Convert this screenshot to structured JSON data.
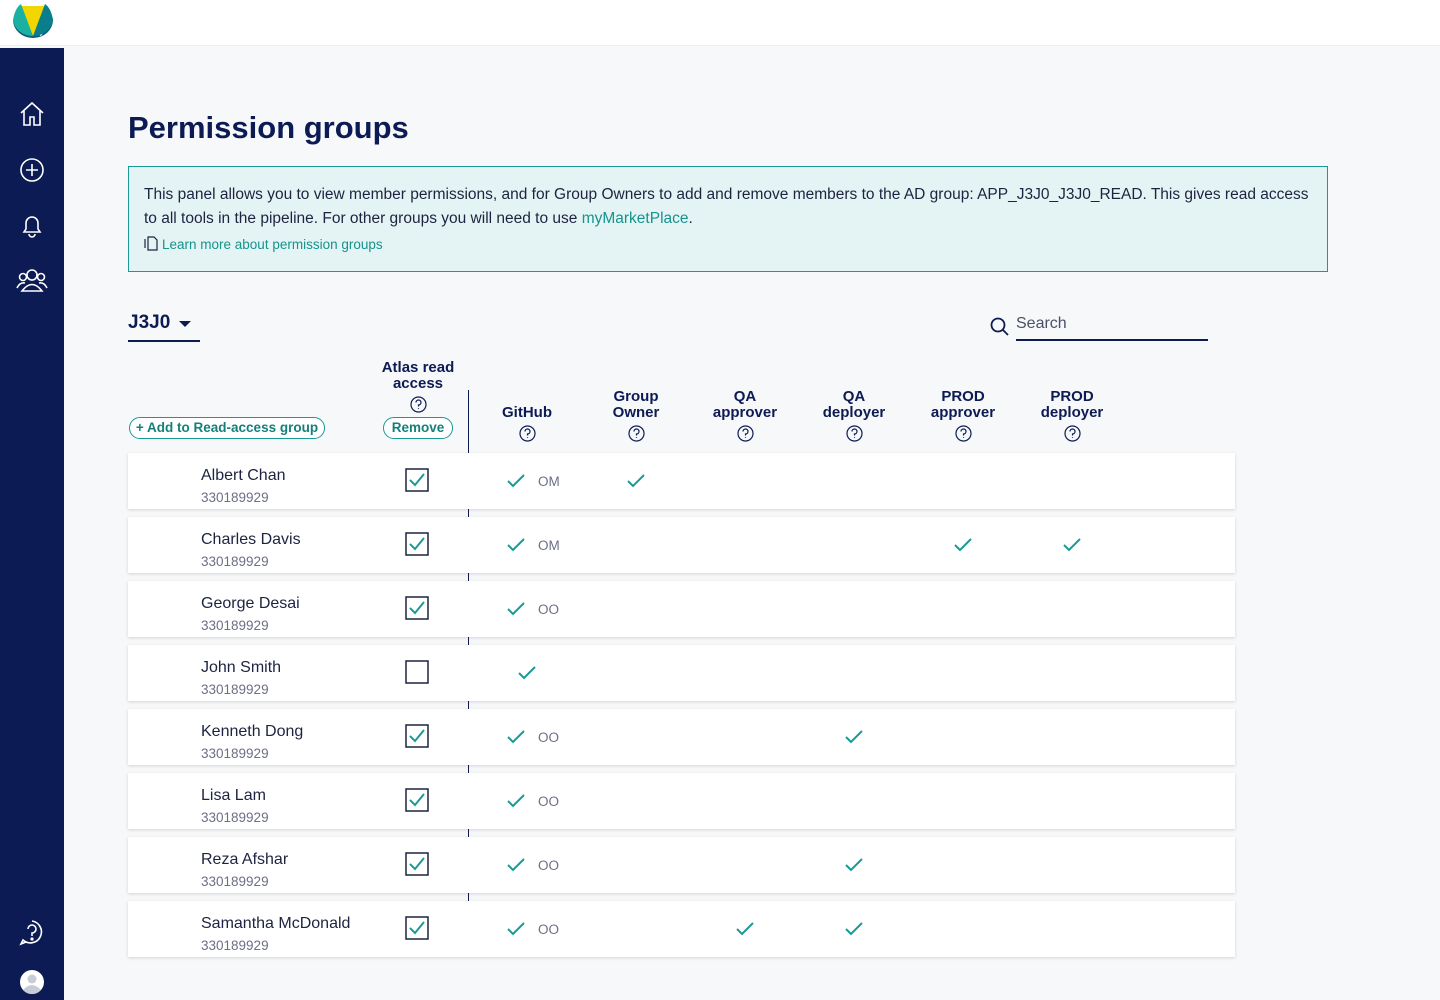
{
  "page": {
    "title": "Permission groups",
    "info": {
      "text": "This panel allows you to view member permissions, and for Group Owners to add and remove members to the AD group: APP_J3J0_J3J0_READ. This gives read access to all tools in the pipeline. For other groups you will need to use ",
      "link": "myMarketPlace",
      "text_after": ".",
      "learn_more": "Learn more about permission groups"
    },
    "group_select": "J3J0",
    "search_placeholder": "Search",
    "add_button": "+ Add to Read-access group",
    "remove_button": "Remove",
    "read_access_column": "Atlas read access",
    "columns": [
      "GitHub",
      "Group Owner",
      "QA approver",
      "QA deployer",
      "PROD approver",
      "PROD deployer"
    ],
    "members": [
      {
        "name": "Albert Chan",
        "id": "330189929",
        "read_access": true,
        "github_role": "OM",
        "permissions": [
          true,
          true,
          false,
          false,
          false,
          false
        ]
      },
      {
        "name": "Charles Davis",
        "id": "330189929",
        "read_access": true,
        "github_role": "OM",
        "permissions": [
          true,
          false,
          false,
          false,
          true,
          true
        ]
      },
      {
        "name": "George Desai",
        "id": "330189929",
        "read_access": true,
        "github_role": "OO",
        "permissions": [
          true,
          false,
          false,
          false,
          false,
          false
        ]
      },
      {
        "name": "John Smith",
        "id": "330189929",
        "read_access": false,
        "permissions": [
          true,
          false,
          false,
          false,
          false,
          false
        ]
      },
      {
        "name": "Kenneth Dong",
        "id": "330189929",
        "read_access": true,
        "github_role": "OO",
        "permissions": [
          true,
          false,
          false,
          true,
          false,
          false
        ]
      },
      {
        "name": "Lisa Lam",
        "id": "330189929",
        "read_access": true,
        "github_role": "OO",
        "permissions": [
          true,
          false,
          false,
          false,
          false,
          false
        ]
      },
      {
        "name": "Reza Afshar",
        "id": "330189929",
        "read_access": true,
        "github_role": "OO",
        "permissions": [
          true,
          false,
          false,
          true,
          false,
          false
        ]
      },
      {
        "name": "Samantha McDonald",
        "id": "330189929",
        "read_access": true,
        "github_role": "OO",
        "permissions": [
          true,
          false,
          true,
          true,
          false,
          false
        ]
      }
    ]
  }
}
